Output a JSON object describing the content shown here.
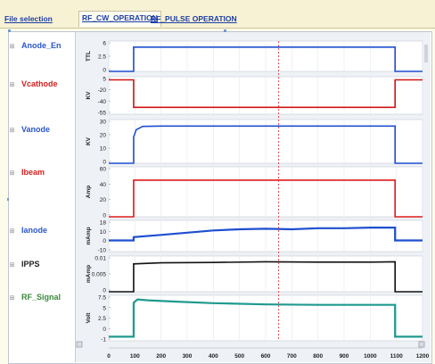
{
  "tabs": [
    {
      "label": "File selection",
      "active": false
    },
    {
      "label": "RF_CW_OPERATION",
      "active": true
    },
    {
      "label": "RF_PULSE OPERATION",
      "active": false
    }
  ],
  "signals": [
    {
      "name": "Anode_En",
      "color": "#2a56c6"
    },
    {
      "name": "Vcathode",
      "color": "#d42020"
    },
    {
      "name": "Vanode",
      "color": "#2a56c6"
    },
    {
      "name": "Ibeam",
      "color": "#d42020"
    },
    {
      "name": "Ianode",
      "color": "#2a56c6"
    },
    {
      "name": "IPPS",
      "color": "#222222"
    },
    {
      "name": "RF_Signal",
      "color": "#3a8a3a"
    }
  ],
  "expander_symbol": "⊞",
  "chart_data": {
    "type": "line",
    "xlim": [
      0,
      1200
    ],
    "x_ticks": [
      "0",
      "100",
      "200",
      "300",
      "400",
      "500",
      "600",
      "700",
      "800",
      "900",
      "1000",
      "1100",
      "1200"
    ],
    "cursor_x": 650,
    "panels": [
      {
        "name": "Anode_En",
        "ylabel": "TTL",
        "yticks": [
          "6",
          "2.5",
          "0"
        ],
        "ylim": [
          0,
          6
        ],
        "color": "#1f4fd0",
        "points": [
          [
            0,
            0
          ],
          [
            95,
            0
          ],
          [
            95,
            4.8
          ],
          [
            1095,
            4.8
          ],
          [
            1095,
            0
          ],
          [
            1200,
            0
          ]
        ]
      },
      {
        "name": "Vcathode",
        "ylabel": "KV",
        "yticks": [
          "5",
          "-20",
          "-40",
          "-55"
        ],
        "ylim": [
          -55,
          5
        ],
        "color": "#d11414",
        "points": [
          [
            0,
            0
          ],
          [
            95,
            0
          ],
          [
            95,
            -44
          ],
          [
            1095,
            -44
          ],
          [
            1095,
            0
          ],
          [
            1200,
            0
          ]
        ]
      },
      {
        "name": "Vanode",
        "ylabel": "KV",
        "yticks": [
          "30",
          "20",
          "10",
          "0"
        ],
        "ylim": [
          0,
          30
        ],
        "color": "#1f4fd0",
        "points": [
          [
            0,
            0
          ],
          [
            95,
            0
          ],
          [
            95,
            18
          ],
          [
            105,
            23
          ],
          [
            130,
            25.3
          ],
          [
            200,
            25.5
          ],
          [
            1095,
            25.5
          ],
          [
            1095,
            0
          ],
          [
            1200,
            0
          ]
        ]
      },
      {
        "name": "Ibeam",
        "ylabel": "Amp",
        "yticks": [
          "60",
          "40",
          "20",
          "0"
        ],
        "ylim": [
          0,
          60
        ],
        "color": "#e01a1a",
        "points": [
          [
            0,
            0
          ],
          [
            95,
            0
          ],
          [
            95,
            44
          ],
          [
            1095,
            44
          ],
          [
            1095,
            0
          ],
          [
            1200,
            0
          ]
        ]
      },
      {
        "name": "Ianode",
        "ylabel": "mAmp",
        "yticks": [
          "18",
          "10",
          "0",
          "-10"
        ],
        "ylim": [
          -10,
          18
        ],
        "color": "#1f4fd0",
        "points": [
          [
            0,
            0
          ],
          [
            95,
            0
          ],
          [
            95,
            3
          ],
          [
            200,
            5
          ],
          [
            300,
            7
          ],
          [
            400,
            9
          ],
          [
            500,
            10
          ],
          [
            600,
            10.5
          ],
          [
            700,
            10
          ],
          [
            800,
            11
          ],
          [
            900,
            11
          ],
          [
            1000,
            11.5
          ],
          [
            1095,
            11.5
          ],
          [
            1095,
            0
          ],
          [
            1200,
            0
          ]
        ]
      },
      {
        "name": "IPPS",
        "ylabel": "mAmp",
        "yticks": [
          "0.01",
          "0.005",
          "0"
        ],
        "ylim": [
          0,
          0.01
        ],
        "color": "#111111",
        "points": [
          [
            0,
            0
          ],
          [
            95,
            0
          ],
          [
            95,
            0.0078
          ],
          [
            200,
            0.0081
          ],
          [
            400,
            0.0082
          ],
          [
            600,
            0.0084
          ],
          [
            800,
            0.0083
          ],
          [
            1000,
            0.0083
          ],
          [
            1095,
            0.0084
          ],
          [
            1095,
            0
          ],
          [
            1200,
            0
          ]
        ]
      },
      {
        "name": "RF_Signal",
        "ylabel": "Volt",
        "yticks": [
          "7.5",
          "5",
          "2.5",
          "0",
          "-1"
        ],
        "ylim": [
          -1,
          10
        ],
        "color": "#1f9a8f",
        "points": [
          [
            0,
            0
          ],
          [
            95,
            0
          ],
          [
            95,
            8.2
          ],
          [
            110,
            9
          ],
          [
            150,
            8.8
          ],
          [
            250,
            8.5
          ],
          [
            400,
            8.1
          ],
          [
            600,
            7.8
          ],
          [
            800,
            7.7
          ],
          [
            1000,
            7.7
          ],
          [
            1095,
            7.7
          ],
          [
            1095,
            0
          ],
          [
            1200,
            0
          ]
        ]
      }
    ]
  }
}
